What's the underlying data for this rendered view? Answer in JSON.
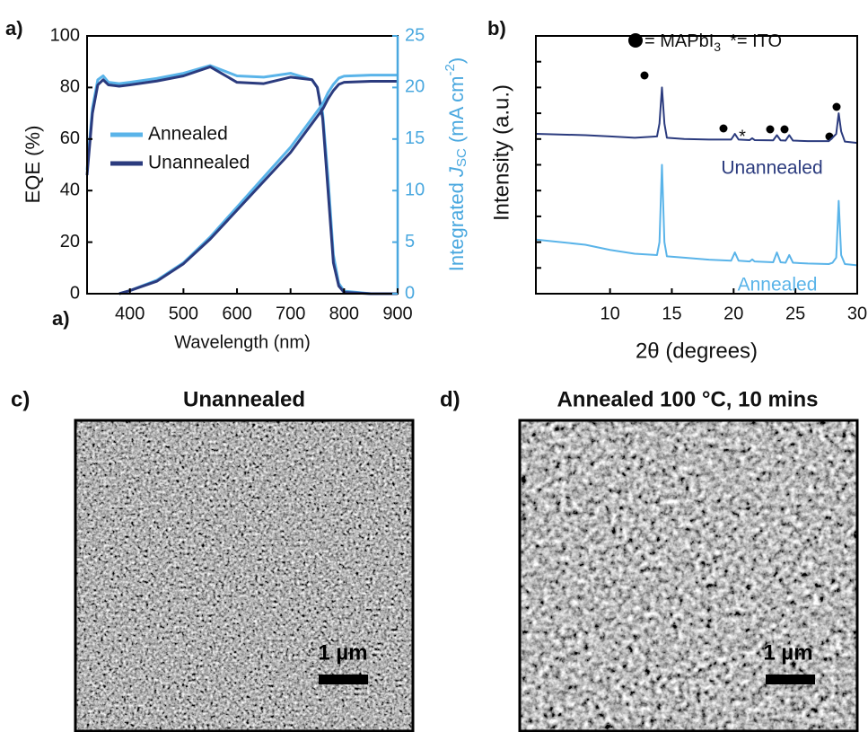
{
  "chart_data": [
    {
      "type": "line",
      "panel_label": "a)",
      "annotations": [
        "a)"
      ],
      "xlabel": "Wavelength (nm)",
      "ylabel": "EQE (%)",
      "y2label": [
        "Integrated ",
        "J",
        "SC",
        " (mA cm",
        "-2",
        ")"
      ],
      "x": [
        320,
        330,
        340,
        350,
        360,
        380,
        400,
        450,
        500,
        550,
        600,
        650,
        700,
        740,
        750,
        760,
        770,
        780,
        790,
        800,
        850,
        900
      ],
      "xlim": [
        320,
        900
      ],
      "xticks": [
        400,
        500,
        600,
        700,
        800,
        900
      ],
      "ylim": [
        0,
        100
      ],
      "yticks": [
        0,
        20,
        40,
        60,
        80,
        100
      ],
      "y2lim": [
        0,
        25
      ],
      "y2ticks": [
        0,
        5,
        10,
        15,
        20,
        25
      ],
      "y2color": "#4aa8df",
      "legend": "upper left",
      "series": [
        {
          "name": "Annealed",
          "color": "#5ab4e9",
          "values": [
            48,
            72,
            83,
            84.5,
            82,
            81.5,
            82,
            83.5,
            85.5,
            88.5,
            84.5,
            84,
            85.5,
            83,
            80,
            70,
            45,
            15,
            4,
            1,
            0,
            0
          ]
        },
        {
          "name": "Unannealed",
          "color": "#2b3b7e",
          "values": [
            46,
            70,
            81,
            83,
            81,
            80.5,
            81,
            82.5,
            84.5,
            88,
            82,
            81.5,
            84,
            83,
            80,
            68,
            40,
            12,
            3,
            0.5,
            0,
            0
          ]
        },
        {
          "color": "#5ab4e9",
          "axis": "y2",
          "values": [
            null,
            null,
            null,
            null,
            null,
            0,
            0.3,
            1.3,
            3.0,
            5.5,
            8.4,
            11.3,
            14.2,
            17.0,
            17.7,
            18.4,
            19.5,
            20.3,
            20.9,
            21.1,
            21.2,
            21.2
          ]
        },
        {
          "color": "#2b3b7e",
          "axis": "y2",
          "values": [
            null,
            null,
            null,
            null,
            null,
            0,
            0.3,
            1.2,
            2.9,
            5.3,
            8.1,
            10.9,
            13.7,
            16.5,
            17.2,
            17.9,
            18.9,
            19.7,
            20.3,
            20.5,
            20.6,
            20.6
          ]
        }
      ]
    },
    {
      "type": "line",
      "panel_label": "b)",
      "xlabel": "2θ (degrees)",
      "ylabel": "Intensity (a.u.)",
      "peak_legend": [
        "= MAPbI",
        "3",
        "*= ITO"
      ],
      "ito_marker": "*",
      "x": [
        4,
        8,
        10,
        12,
        13.8,
        14.0,
        14.2,
        14.4,
        14.6,
        16,
        18,
        19.8,
        20.1,
        20.4,
        21.3,
        21.5,
        21.7,
        23.2,
        23.5,
        23.8,
        24.2,
        24.5,
        24.8,
        26,
        27.7,
        28.0,
        28.3,
        28.5,
        28.7,
        29,
        30
      ],
      "xlim": [
        4,
        30
      ],
      "xticks": [
        10,
        15,
        20,
        25,
        30
      ],
      "ylim": [
        0,
        100
      ],
      "yticks": [
        10,
        20,
        30,
        40,
        50,
        60,
        70,
        80,
        90
      ],
      "ytick_labels": false,
      "series": [
        {
          "name": "Unannealed",
          "color": "#2b3b7e",
          "values": [
            62,
            61.5,
            61,
            60.5,
            61,
            66,
            80,
            66,
            60.5,
            60,
            59.8,
            59.8,
            62,
            59.8,
            59.6,
            60.3,
            59.6,
            59.5,
            61.5,
            59.5,
            59.4,
            61.5,
            59.4,
            59.2,
            59.2,
            60.5,
            62,
            70,
            63,
            59,
            58.5
          ]
        },
        {
          "name": "Annealed",
          "color": "#5ab4e9",
          "values": [
            21,
            19,
            17,
            15.5,
            15,
            20,
            50,
            20,
            14.5,
            14,
            13.2,
            12.8,
            16,
            12.8,
            12.5,
            13.3,
            12.5,
            12.2,
            16,
            12.2,
            12,
            15,
            12,
            11.7,
            11.5,
            12,
            14,
            36,
            15,
            11.5,
            11
          ]
        }
      ]
    }
  ],
  "images": [
    {
      "label": "c)",
      "title": "Unannealed",
      "scale_bar": "1 µm"
    },
    {
      "label": "d)",
      "title": "Annealed 100 °C, 10 mins",
      "scale_bar": "1 µm"
    }
  ]
}
